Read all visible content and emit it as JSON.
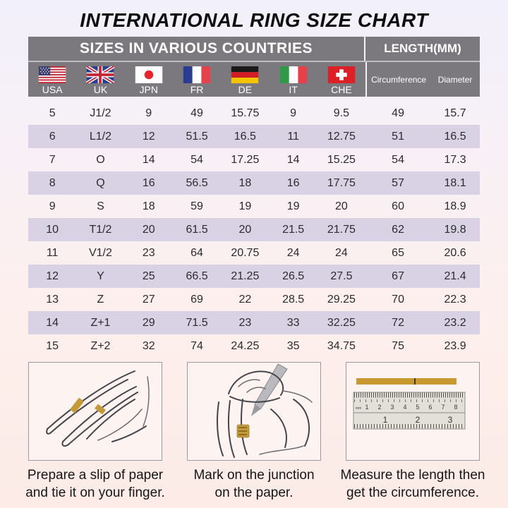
{
  "title": "INTERNATIONAL RING SIZE CHART",
  "table": {
    "countries_header": "SIZES IN VARIOUS COUNTRIES",
    "length_header": "LENGTH(MM)",
    "country_columns": [
      {
        "code": "USA"
      },
      {
        "code": "UK"
      },
      {
        "code": "JPN"
      },
      {
        "code": "FR"
      },
      {
        "code": "DE"
      },
      {
        "code": "IT"
      },
      {
        "code": "CHE"
      }
    ],
    "length_columns": [
      "Circumference",
      "Diameter"
    ]
  },
  "chart_data": {
    "type": "table",
    "title": "INTERNATIONAL RING SIZE CHART",
    "group_headers": [
      "SIZES IN VARIOUS COUNTRIES",
      "LENGTH(MM)"
    ],
    "columns": [
      "USA",
      "UK",
      "JPN",
      "FR",
      "DE",
      "IT",
      "CHE",
      "Circumference",
      "Diameter"
    ],
    "rows": [
      [
        "5",
        "J1/2",
        "9",
        "49",
        "15.75",
        "9",
        "9.5",
        "49",
        "15.7"
      ],
      [
        "6",
        "L1/2",
        "12",
        "51.5",
        "16.5",
        "11",
        "12.75",
        "51",
        "16.5"
      ],
      [
        "7",
        "O",
        "14",
        "54",
        "17.25",
        "14",
        "15.25",
        "54",
        "17.3"
      ],
      [
        "8",
        "Q",
        "16",
        "56.5",
        "18",
        "16",
        "17.75",
        "57",
        "18.1"
      ],
      [
        "9",
        "S",
        "18",
        "59",
        "19",
        "19",
        "20",
        "60",
        "18.9"
      ],
      [
        "10",
        "T1/2",
        "20",
        "61.5",
        "20",
        "21.5",
        "21.75",
        "62",
        "19.8"
      ],
      [
        "11",
        "V1/2",
        "23",
        "64",
        "20.75",
        "24",
        "24",
        "65",
        "20.6"
      ],
      [
        "12",
        "Y",
        "25",
        "66.5",
        "21.25",
        "26.5",
        "27.5",
        "67",
        "21.4"
      ],
      [
        "13",
        "Z",
        "27",
        "69",
        "22",
        "28.5",
        "29.25",
        "70",
        "22.3"
      ],
      [
        "14",
        "Z+1",
        "29",
        "71.5",
        "23",
        "33",
        "32.25",
        "72",
        "23.2"
      ],
      [
        "15",
        "Z+2",
        "32",
        "74",
        "24.25",
        "35",
        "34.75",
        "75",
        "23.9"
      ]
    ]
  },
  "instructions": [
    {
      "lines": [
        "Prepare a slip of paper",
        "and tie it on your finger."
      ]
    },
    {
      "lines": [
        "Mark on the junction",
        "on the paper."
      ]
    },
    {
      "lines": [
        "Measure the length then",
        "get the circumference."
      ]
    }
  ],
  "ruler": {
    "mm_label": "mm",
    "top_scale": [
      "1",
      "2",
      "3",
      "4",
      "5",
      "6",
      "7",
      "8"
    ],
    "bottom_scale": [
      "1",
      "2",
      "3"
    ]
  },
  "colors": {
    "header_gray": "#7b797d",
    "row_stripe": "#d9d2e5",
    "gold_strip": "#c8992f"
  }
}
